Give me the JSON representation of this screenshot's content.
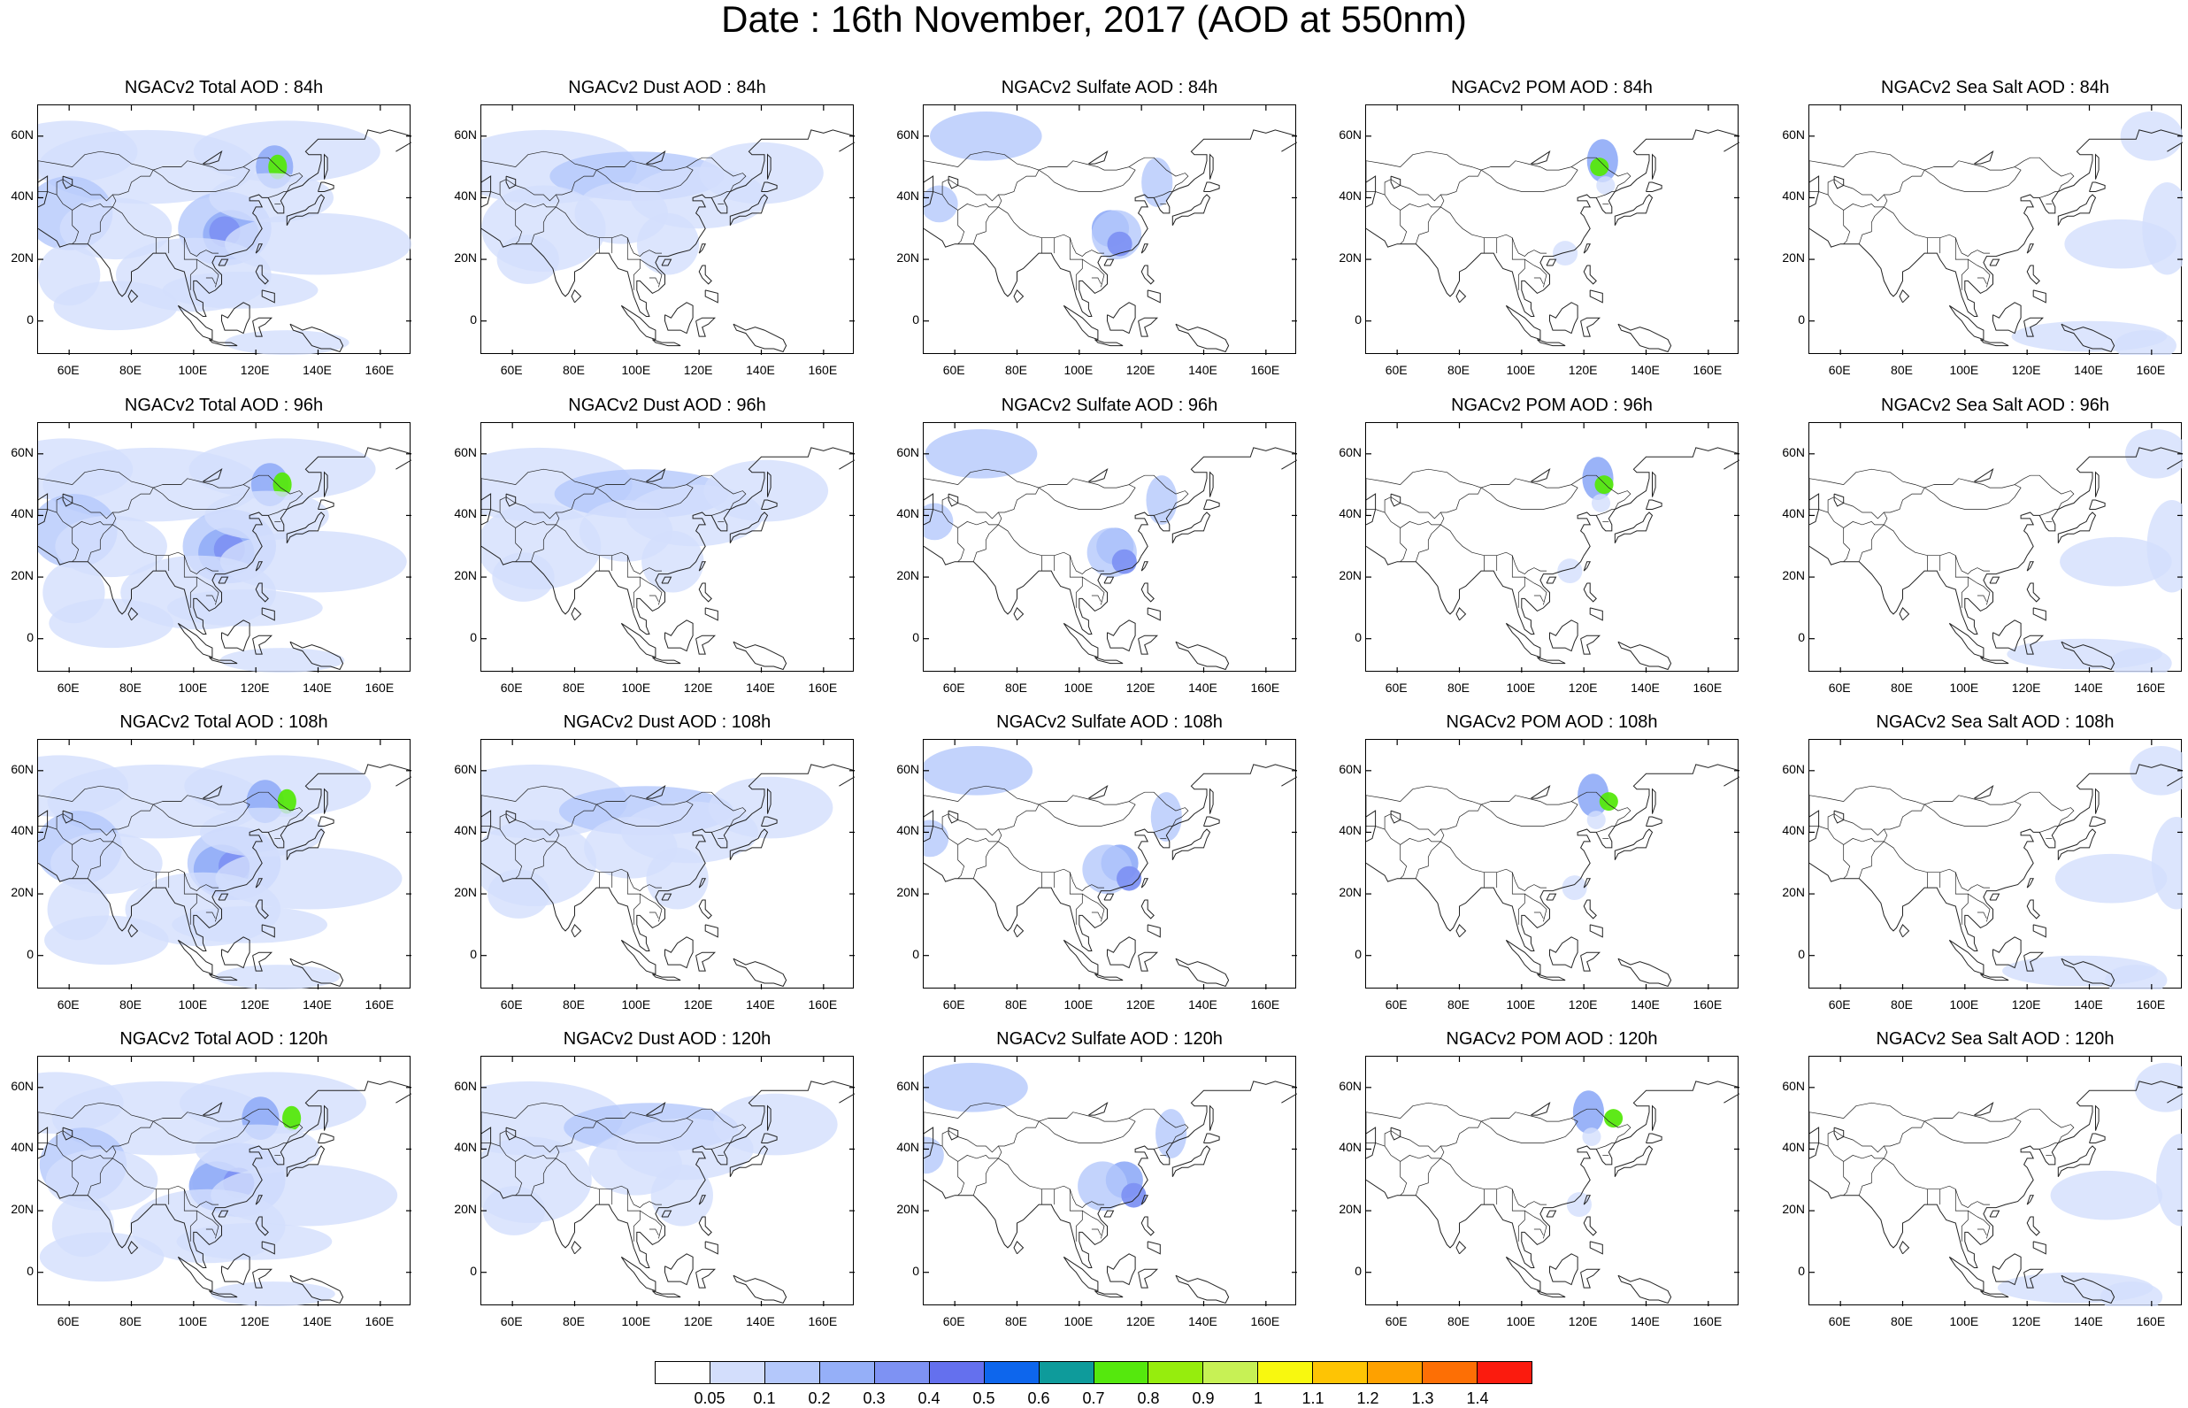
{
  "title": "Date : 16th November, 2017 (AOD at 550nm)",
  "chart_data": {
    "type": "heatmap",
    "layout": "4 rows x 5 columns of map panels",
    "variables": [
      "Total",
      "Dust",
      "Sulfate",
      "POM",
      "Sea Salt"
    ],
    "lead_times": [
      "84h",
      "96h",
      "108h",
      "120h"
    ],
    "panels": [
      {
        "title": "NGACv2 Total AOD : 84h",
        "variable": "Total",
        "lead": "84h"
      },
      {
        "title": "NGACv2 Dust AOD : 84h",
        "variable": "Dust",
        "lead": "84h"
      },
      {
        "title": "NGACv2 Sulfate AOD : 84h",
        "variable": "Sulfate",
        "lead": "84h"
      },
      {
        "title": "NGACv2 POM AOD : 84h",
        "variable": "POM",
        "lead": "84h"
      },
      {
        "title": "NGACv2 Sea Salt AOD : 84h",
        "variable": "Sea Salt",
        "lead": "84h"
      },
      {
        "title": "NGACv2 Total AOD : 96h",
        "variable": "Total",
        "lead": "96h"
      },
      {
        "title": "NGACv2 Dust AOD : 96h",
        "variable": "Dust",
        "lead": "96h"
      },
      {
        "title": "NGACv2 Sulfate AOD : 96h",
        "variable": "Sulfate",
        "lead": "96h"
      },
      {
        "title": "NGACv2 POM AOD : 96h",
        "variable": "POM",
        "lead": "96h"
      },
      {
        "title": "NGACv2 Sea Salt AOD : 96h",
        "variable": "Sea Salt",
        "lead": "96h"
      },
      {
        "title": "NGACv2 Total AOD : 108h",
        "variable": "Total",
        "lead": "108h"
      },
      {
        "title": "NGACv2 Dust AOD : 108h",
        "variable": "Dust",
        "lead": "108h"
      },
      {
        "title": "NGACv2 Sulfate AOD : 108h",
        "variable": "Sulfate",
        "lead": "108h"
      },
      {
        "title": "NGACv2 POM AOD : 108h",
        "variable": "POM",
        "lead": "108h"
      },
      {
        "title": "NGACv2 Sea Salt AOD : 108h",
        "variable": "Sea Salt",
        "lead": "108h"
      },
      {
        "title": "NGACv2 Total AOD : 120h",
        "variable": "Total",
        "lead": "120h"
      },
      {
        "title": "NGACv2 Dust AOD : 120h",
        "variable": "Dust",
        "lead": "120h"
      },
      {
        "title": "NGACv2 Sulfate AOD : 120h",
        "variable": "Sulfate",
        "lead": "120h"
      },
      {
        "title": "NGACv2 POM AOD : 120h",
        "variable": "POM",
        "lead": "120h"
      },
      {
        "title": "NGACv2 Sea Salt  AOD : 120h",
        "variable": "Sea Salt",
        "lead": "120h"
      }
    ],
    "lon_ticks": [
      "60E",
      "80E",
      "100E",
      "120E",
      "140E",
      "160E"
    ],
    "lon_tick_values": [
      60,
      80,
      100,
      120,
      140,
      160
    ],
    "lat_ticks": [
      "60N",
      "40N",
      "20N",
      "0"
    ],
    "lat_tick_values": [
      60,
      40,
      20,
      0
    ],
    "xlim": [
      50,
      170
    ],
    "ylim": [
      -11,
      70
    ],
    "colorbar": {
      "labels": [
        "0.05",
        "0.1",
        "0.2",
        "0.3",
        "0.4",
        "0.5",
        "0.6",
        "0.7",
        "0.8",
        "0.9",
        "1",
        "1.1",
        "1.2",
        "1.3",
        "1.4"
      ],
      "colors": [
        "#ffffff",
        "#d3defc",
        "#b4c8fb",
        "#95aff8",
        "#7e92f3",
        "#6470ee",
        "#0d66ed",
        "#0e9b9b",
        "#55e80d",
        "#96ed0d",
        "#c7f155",
        "#f8f80f",
        "#fec404",
        "#fea100",
        "#fd6f05",
        "#fb1b0e"
      ]
    }
  }
}
